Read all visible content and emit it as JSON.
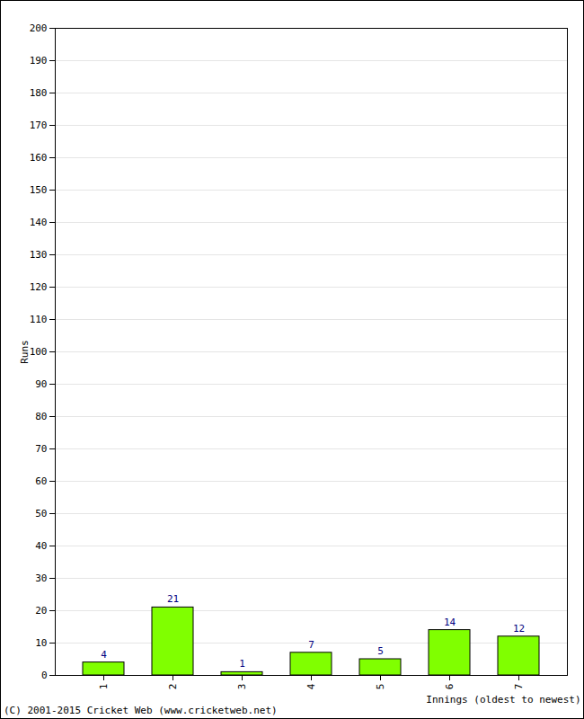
{
  "chart_data": {
    "type": "bar",
    "categories": [
      "1",
      "2",
      "3",
      "4",
      "5",
      "6",
      "7"
    ],
    "values": [
      4,
      21,
      1,
      7,
      5,
      14,
      12
    ],
    "color": "#80ff00",
    "x_label": "Innings (oldest to newest)",
    "y_label": "Runs",
    "caption": "(C) 2001-2015 Cricket Web (www.cricketweb.net)",
    "ylim": [
      0,
      200
    ],
    "yticks": [
      0,
      10,
      20,
      30,
      40,
      50,
      60,
      70,
      80,
      90,
      100,
      110,
      120,
      130,
      140,
      150,
      160,
      170,
      180,
      190,
      200
    ],
    "grid": true,
    "data_labels": true
  }
}
